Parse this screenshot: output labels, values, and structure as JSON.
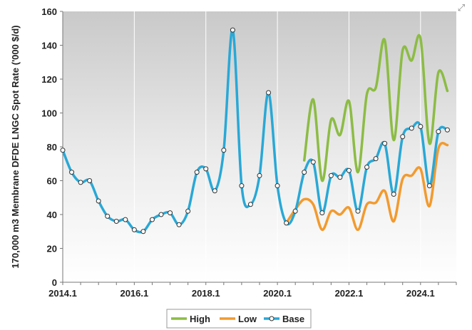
{
  "chart_data": {
    "type": "line",
    "title": "",
    "xlabel": "",
    "ylabel": "170,000 m3 Membrane DFDE LNGC Spot Rate ('000 $/d)",
    "ylim": [
      0,
      160
    ],
    "yticks": [
      0,
      20,
      40,
      60,
      80,
      100,
      120,
      140,
      160
    ],
    "xlim": [
      2014.0,
      2025.0
    ],
    "xticks": [
      {
        "value": 2014.0,
        "label": "2014.1"
      },
      {
        "value": 2016.0,
        "label": "2016.1"
      },
      {
        "value": 2018.0,
        "label": "2018.1"
      },
      {
        "value": 2020.0,
        "label": "2020.1"
      },
      {
        "value": 2022.0,
        "label": "2022.1"
      },
      {
        "value": 2024.0,
        "label": "2024.1"
      }
    ],
    "grid": "vertical",
    "legend": "bottom-center",
    "series": [
      {
        "name": "High",
        "color": "#8cbc44",
        "markers": false,
        "x": [
          2020.75,
          2021.0,
          2021.25,
          2021.5,
          2021.75,
          2022.0,
          2022.25,
          2022.5,
          2022.75,
          2023.0,
          2023.25,
          2023.5,
          2023.75,
          2024.0,
          2024.25,
          2024.5,
          2024.75
        ],
        "y": [
          72,
          108,
          60,
          96,
          87,
          107,
          65,
          111,
          115,
          143,
          84,
          137,
          131,
          144,
          82,
          124,
          113
        ]
      },
      {
        "name": "Low",
        "color": "#f29a2e",
        "markers": false,
        "x": [
          2020.25,
          2020.5,
          2020.75,
          2021.0,
          2021.25,
          2021.5,
          2021.75,
          2022.0,
          2022.25,
          2022.5,
          2022.75,
          2023.0,
          2023.25,
          2023.5,
          2023.75,
          2024.0,
          2024.25,
          2024.5,
          2024.75
        ],
        "y": [
          35,
          43,
          49,
          46,
          31,
          42,
          40,
          44,
          31,
          46,
          47,
          54,
          36,
          61,
          63,
          67,
          45,
          79,
          81
        ]
      },
      {
        "name": "Base",
        "color": "#29a8d6",
        "markers": true,
        "x": [
          2014.0,
          2014.25,
          2014.5,
          2014.75,
          2015.0,
          2015.25,
          2015.5,
          2015.75,
          2016.0,
          2016.25,
          2016.5,
          2016.75,
          2017.0,
          2017.25,
          2017.5,
          2017.75,
          2018.0,
          2018.25,
          2018.5,
          2018.75,
          2019.0,
          2019.25,
          2019.5,
          2019.75,
          2020.0,
          2020.25,
          2020.5,
          2020.75,
          2021.0,
          2021.25,
          2021.5,
          2021.75,
          2022.0,
          2022.25,
          2022.5,
          2022.75,
          2023.0,
          2023.25,
          2023.5,
          2023.75,
          2024.0,
          2024.25,
          2024.5,
          2024.75
        ],
        "y": [
          78,
          65,
          59,
          60,
          48,
          39,
          36,
          37,
          31,
          30,
          37,
          40,
          41,
          34,
          42,
          65,
          67,
          54,
          78,
          149,
          57,
          46,
          63,
          112,
          57,
          35,
          42,
          65,
          71,
          41,
          63,
          62,
          66,
          42,
          68,
          73,
          82,
          52,
          86,
          91,
          92,
          57,
          89,
          90
        ]
      }
    ]
  },
  "legend": {
    "items": [
      {
        "label": "High",
        "color": "#8cbc44",
        "marker": false
      },
      {
        "label": "Low",
        "color": "#f29a2e",
        "marker": false
      },
      {
        "label": "Base",
        "color": "#29a8d6",
        "marker": true
      }
    ]
  },
  "ui": {
    "expand_icon": "expand-icon"
  }
}
